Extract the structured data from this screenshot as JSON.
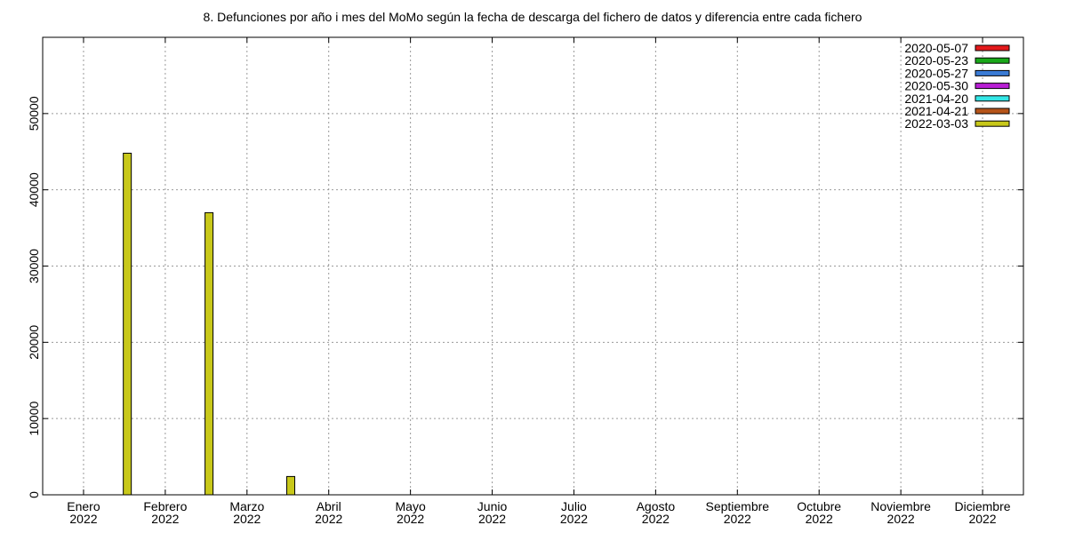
{
  "chart_data": {
    "type": "bar",
    "title": "8. Defunciones por año i mes del MoMo según la fecha de descarga del fichero de datos y diferencia entre cada fichero",
    "xlabel": "",
    "ylabel": "",
    "ylim": [
      0,
      60000
    ],
    "yticks": [
      0,
      10000,
      20000,
      30000,
      40000,
      50000
    ],
    "grid": true,
    "legend_position": "top-right",
    "categories": [
      {
        "month": "Enero",
        "year": "2022"
      },
      {
        "month": "Febrero",
        "year": "2022"
      },
      {
        "month": "Marzo",
        "year": "2022"
      },
      {
        "month": "Abril",
        "year": "2022"
      },
      {
        "month": "Mayo",
        "year": "2022"
      },
      {
        "month": "Junio",
        "year": "2022"
      },
      {
        "month": "Julio",
        "year": "2022"
      },
      {
        "month": "Agosto",
        "year": "2022"
      },
      {
        "month": "Septiembre",
        "year": "2022"
      },
      {
        "month": "Octubre",
        "year": "2022"
      },
      {
        "month": "Noviembre",
        "year": "2022"
      },
      {
        "month": "Diciembre",
        "year": "2022"
      }
    ],
    "series": [
      {
        "name": "2020-05-07",
        "color": "#e41a1c",
        "values": [
          null,
          null,
          null,
          null,
          null,
          null,
          null,
          null,
          null,
          null,
          null,
          null
        ]
      },
      {
        "name": "2020-05-23",
        "color": "#1aa81a",
        "values": [
          null,
          null,
          null,
          null,
          null,
          null,
          null,
          null,
          null,
          null,
          null,
          null
        ]
      },
      {
        "name": "2020-05-27",
        "color": "#3a7bd5",
        "values": [
          null,
          null,
          null,
          null,
          null,
          null,
          null,
          null,
          null,
          null,
          null,
          null
        ]
      },
      {
        "name": "2020-05-30",
        "color": "#b81fd4",
        "values": [
          null,
          null,
          null,
          null,
          null,
          null,
          null,
          null,
          null,
          null,
          null,
          null
        ]
      },
      {
        "name": "2021-04-20",
        "color": "#33e6e6",
        "values": [
          null,
          null,
          null,
          null,
          null,
          null,
          null,
          null,
          null,
          null,
          null,
          null
        ]
      },
      {
        "name": "2021-04-21",
        "color": "#b5541a",
        "values": [
          null,
          null,
          null,
          null,
          null,
          null,
          null,
          null,
          null,
          null,
          null,
          null
        ]
      },
      {
        "name": "2022-03-03",
        "color": "#c8c81a",
        "values": [
          44800,
          37000,
          2400,
          null,
          null,
          null,
          null,
          null,
          null,
          null,
          null,
          null
        ]
      }
    ]
  }
}
